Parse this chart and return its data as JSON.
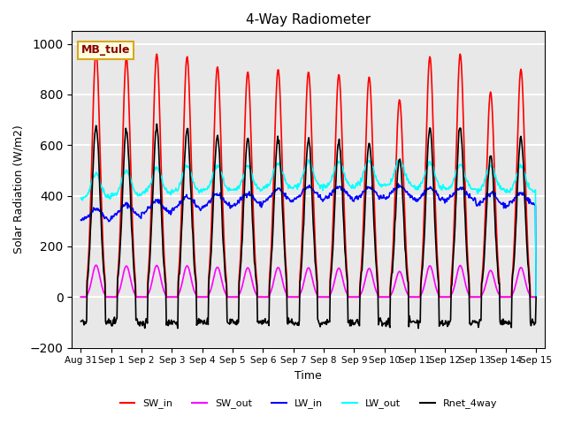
{
  "title": "4-Way Radiometer",
  "xlabel": "Time",
  "ylabel": "Solar Radiation (W/m2)",
  "ylim": [
    -200,
    1050
  ],
  "annotation": "MB_tule",
  "background_color": "#e8e8e8",
  "grid_color": "white",
  "series": {
    "SW_in": {
      "color": "red",
      "lw": 1.2
    },
    "SW_out": {
      "color": "magenta",
      "lw": 1.2
    },
    "LW_in": {
      "color": "blue",
      "lw": 1.2
    },
    "LW_out": {
      "color": "cyan",
      "lw": 1.2
    },
    "Rnet_4way": {
      "color": "black",
      "lw": 1.2
    }
  },
  "n_days": 15,
  "tick_labels": [
    "Aug 31",
    "Sep 1",
    "Sep 2",
    "Sep 3",
    "Sep 4",
    "Sep 5",
    "Sep 6",
    "Sep 7",
    "Sep 8",
    "Sep 9",
    "Sep 10",
    "Sep 11",
    "Sep 12",
    "Sep 13",
    "Sep 14",
    "Sep 15"
  ],
  "yticks": [
    -200,
    0,
    200,
    400,
    600,
    800,
    1000
  ],
  "SW_in_peaks": [
    970,
    945,
    960,
    950,
    910,
    890,
    900,
    890,
    880,
    870,
    780,
    950,
    960,
    810,
    900
  ],
  "LW_in_base": [
    300,
    315,
    330,
    345,
    355,
    360,
    375,
    385,
    385,
    385,
    390,
    380,
    380,
    360,
    360
  ],
  "LW_out_base": [
    390,
    400,
    410,
    415,
    420,
    420,
    430,
    435,
    435,
    440,
    440,
    430,
    425,
    420,
    415
  ]
}
